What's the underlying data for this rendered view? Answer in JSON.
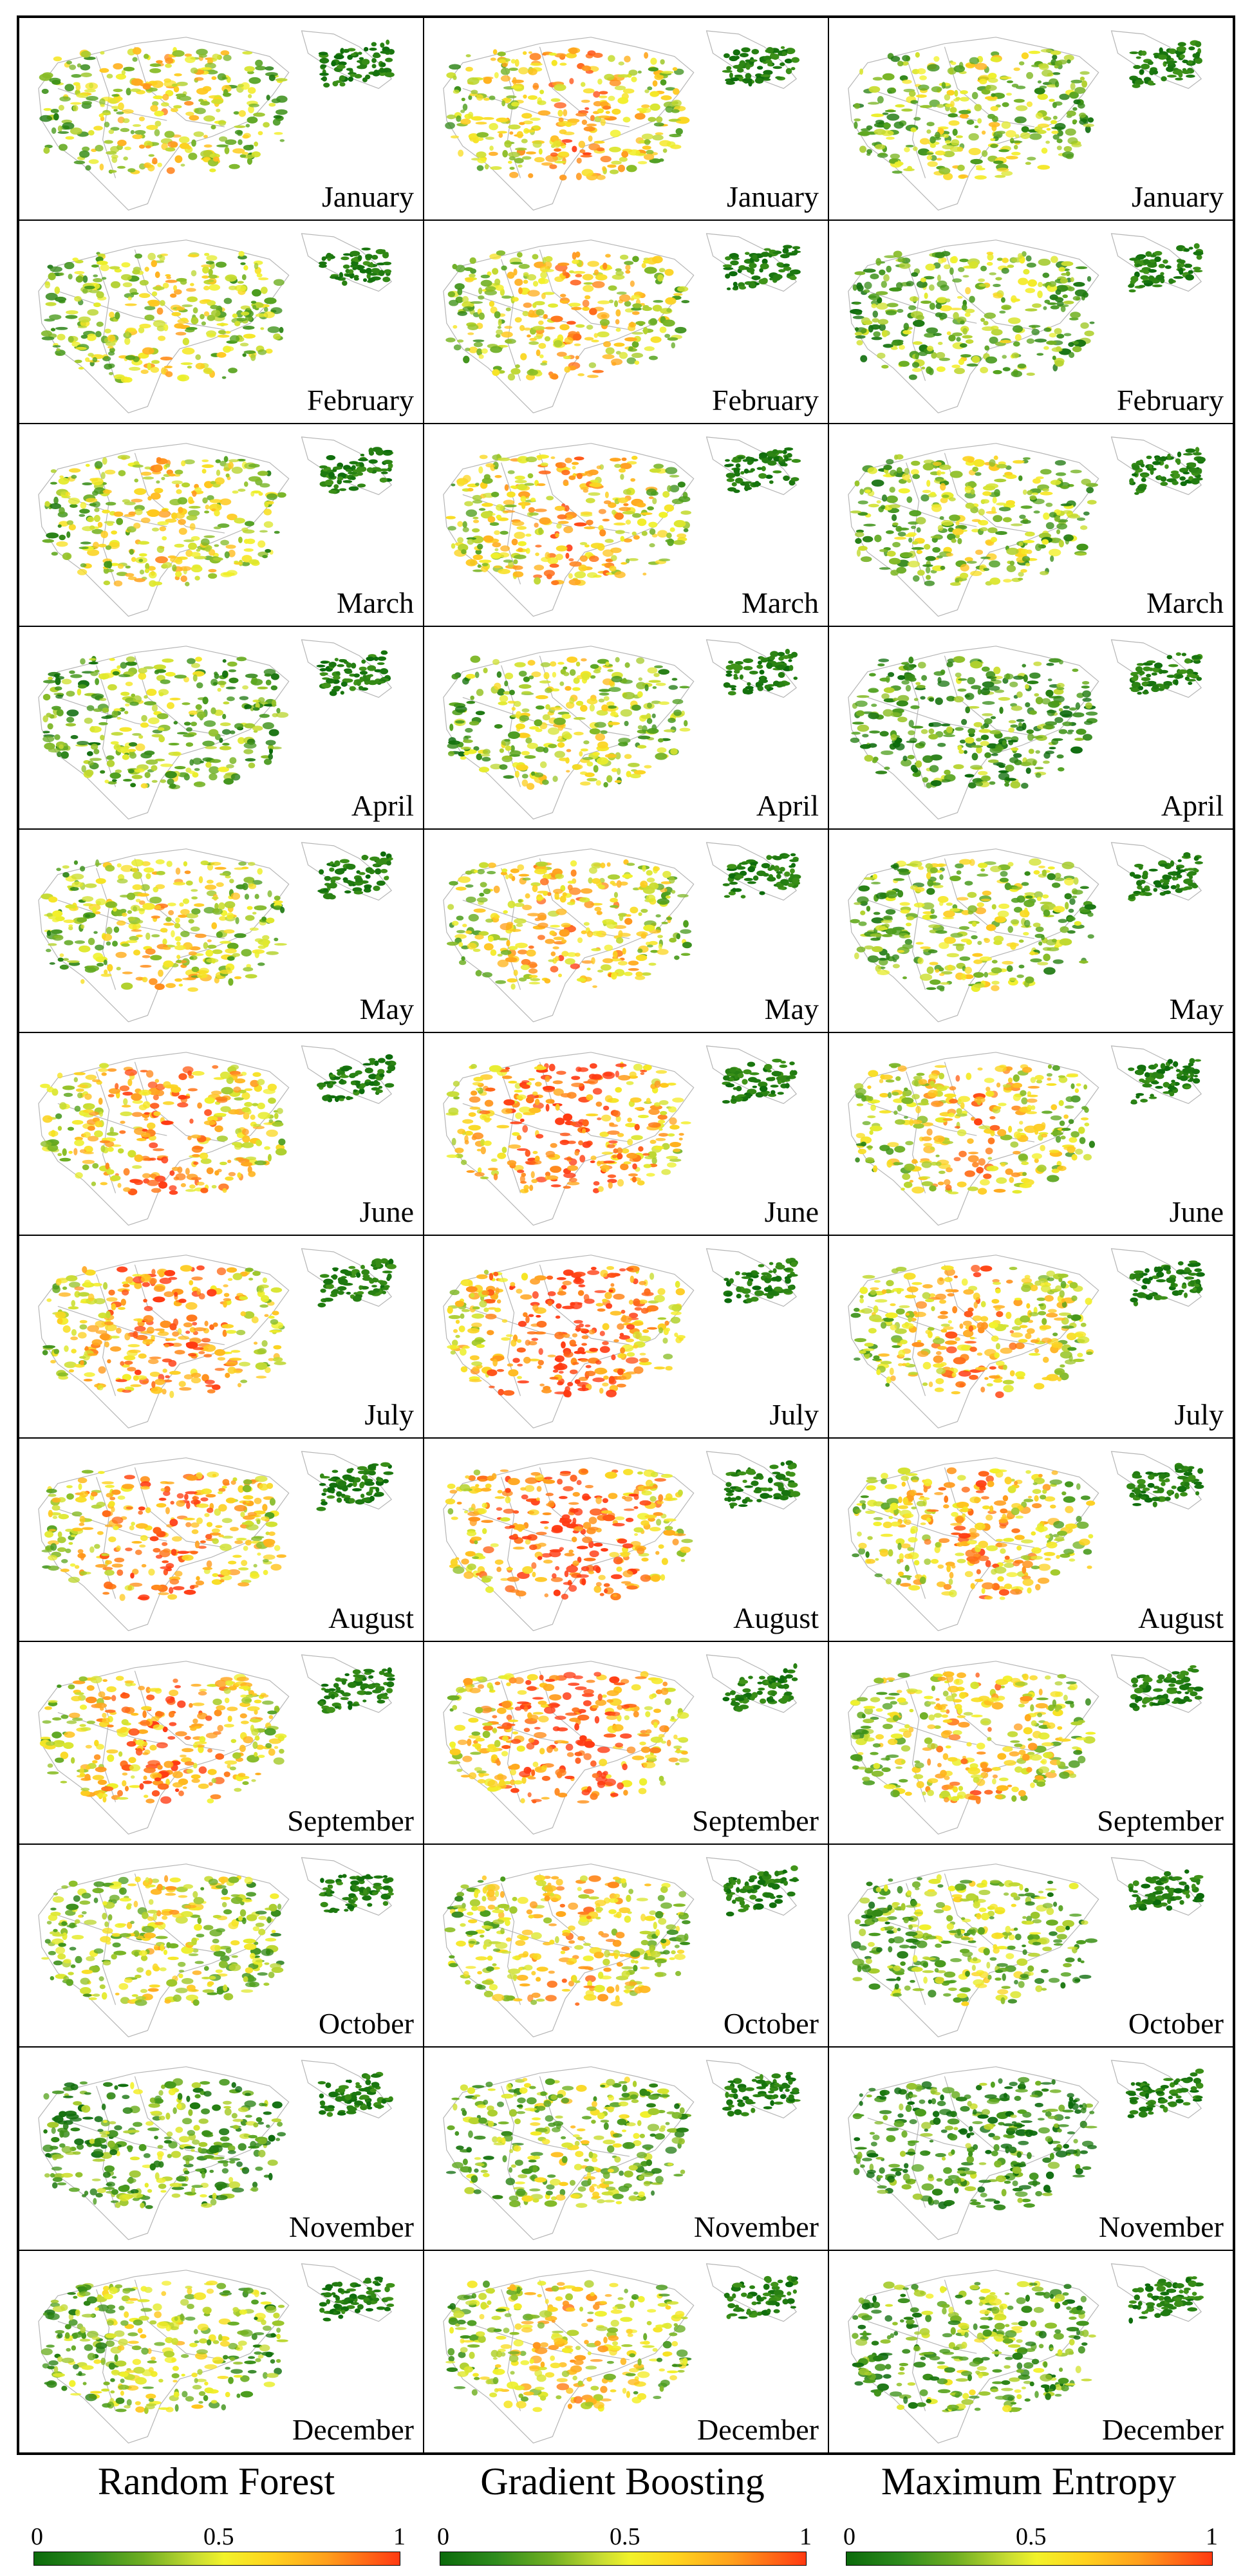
{
  "months": [
    "January",
    "February",
    "March",
    "April",
    "May",
    "June",
    "July",
    "August",
    "September",
    "October",
    "November",
    "December"
  ],
  "models": [
    {
      "name": "Random Forest"
    },
    {
      "name": "Gradient Boosting"
    },
    {
      "name": "Maximum Entropy"
    }
  ],
  "legend": {
    "ticks": [
      "0",
      "0.5",
      "1"
    ]
  },
  "colors": {
    "low": "#0b6a0b",
    "mid": "#f2f22a",
    "high": "#ff3a12",
    "outline": "#b5b5b5"
  }
}
